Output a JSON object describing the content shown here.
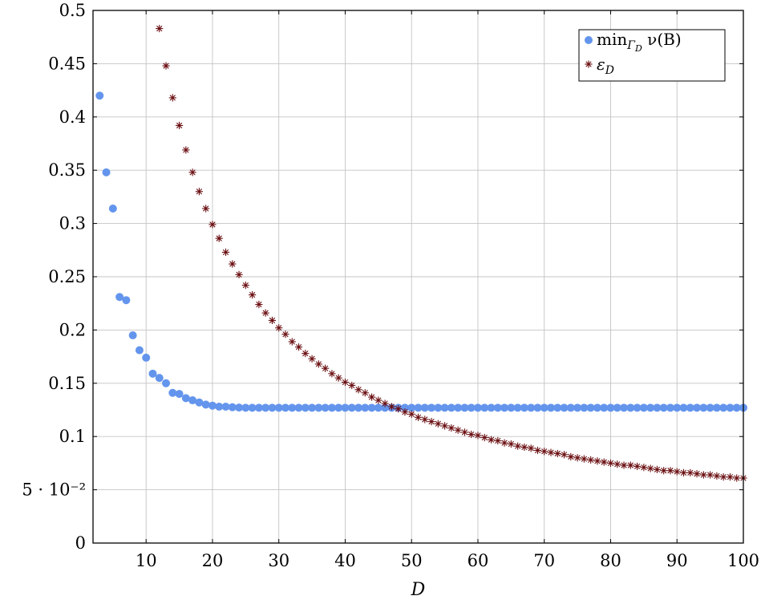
{
  "chart_data": {
    "type": "scatter",
    "xlabel": "D",
    "ylabel": "",
    "xlim": [
      2,
      100
    ],
    "ylim": [
      0,
      0.5
    ],
    "grid": true,
    "legend_position": "top-right",
    "x_ticks": [
      10,
      20,
      30,
      40,
      50,
      60,
      70,
      80,
      90,
      100
    ],
    "x_tick_labels": [
      "10",
      "20",
      "30",
      "40",
      "50",
      "60",
      "70",
      "80",
      "90",
      "100"
    ],
    "y_ticks": [
      0,
      0.05,
      0.1,
      0.15,
      0.2,
      0.25,
      0.3,
      0.35,
      0.4,
      0.45,
      0.5
    ],
    "y_tick_labels": [
      "0",
      "5 · 10⁻²",
      "0.1",
      "0.15",
      "0.2",
      "0.25",
      "0.3",
      "0.35",
      "0.4",
      "0.45",
      "0.5"
    ],
    "series": [
      {
        "name": "min_{Γ_D} ν(B)",
        "color": "#6495ed",
        "marker": "circle",
        "x": [
          3,
          4,
          5,
          6,
          7,
          8,
          9,
          10,
          11,
          12,
          13,
          14,
          15,
          16,
          17,
          18,
          19,
          20,
          21,
          22,
          23,
          24,
          25,
          26,
          27,
          28,
          29,
          30,
          31,
          32,
          33,
          34,
          35,
          36,
          37,
          38,
          39,
          40,
          41,
          42,
          43,
          44,
          45,
          46,
          47,
          48,
          49,
          50,
          51,
          52,
          53,
          54,
          55,
          56,
          57,
          58,
          59,
          60,
          61,
          62,
          63,
          64,
          65,
          66,
          67,
          68,
          69,
          70,
          71,
          72,
          73,
          74,
          75,
          76,
          77,
          78,
          79,
          80,
          81,
          82,
          83,
          84,
          85,
          86,
          87,
          88,
          89,
          90,
          91,
          92,
          93,
          94,
          95,
          96,
          97,
          98,
          99,
          100
        ],
        "y": [
          0.42,
          0.348,
          0.314,
          0.231,
          0.228,
          0.195,
          0.181,
          0.174,
          0.159,
          0.155,
          0.15,
          0.141,
          0.14,
          0.136,
          0.134,
          0.132,
          0.13,
          0.129,
          0.128,
          0.128,
          0.1275,
          0.1272,
          0.127,
          0.127,
          0.127,
          0.127,
          0.127,
          0.127,
          0.127,
          0.127,
          0.127,
          0.127,
          0.127,
          0.127,
          0.127,
          0.127,
          0.127,
          0.127,
          0.127,
          0.127,
          0.127,
          0.127,
          0.127,
          0.127,
          0.127,
          0.127,
          0.127,
          0.127,
          0.127,
          0.127,
          0.127,
          0.127,
          0.127,
          0.127,
          0.127,
          0.127,
          0.127,
          0.127,
          0.127,
          0.127,
          0.127,
          0.127,
          0.127,
          0.127,
          0.127,
          0.127,
          0.127,
          0.127,
          0.127,
          0.127,
          0.127,
          0.127,
          0.127,
          0.127,
          0.127,
          0.127,
          0.127,
          0.127,
          0.127,
          0.127,
          0.127,
          0.127,
          0.127,
          0.127,
          0.127,
          0.127,
          0.127,
          0.127,
          0.127,
          0.127,
          0.127,
          0.127,
          0.127,
          0.127,
          0.127,
          0.127,
          0.127,
          0.127
        ]
      },
      {
        "name": "ε_D",
        "color": "#6b0f12",
        "marker": "asterisk",
        "x": [
          12,
          13,
          14,
          15,
          16,
          17,
          18,
          19,
          20,
          21,
          22,
          23,
          24,
          25,
          26,
          27,
          28,
          29,
          30,
          31,
          32,
          33,
          34,
          35,
          36,
          37,
          38,
          39,
          40,
          41,
          42,
          43,
          44,
          45,
          46,
          47,
          48,
          49,
          50,
          51,
          52,
          53,
          54,
          55,
          56,
          57,
          58,
          59,
          60,
          61,
          62,
          63,
          64,
          65,
          66,
          67,
          68,
          69,
          70,
          71,
          72,
          73,
          74,
          75,
          76,
          77,
          78,
          79,
          80,
          81,
          82,
          83,
          84,
          85,
          86,
          87,
          88,
          89,
          90,
          91,
          92,
          93,
          94,
          95,
          96,
          97,
          98,
          99,
          100
        ],
        "y": [
          0.483,
          0.448,
          0.418,
          0.392,
          0.369,
          0.348,
          0.33,
          0.314,
          0.299,
          0.286,
          0.273,
          0.262,
          0.252,
          0.242,
          0.233,
          0.224,
          0.216,
          0.209,
          0.202,
          0.196,
          0.189,
          0.184,
          0.178,
          0.173,
          0.168,
          0.164,
          0.159,
          0.155,
          0.151,
          0.148,
          0.144,
          0.141,
          0.137,
          0.134,
          0.131,
          0.128,
          0.126,
          0.123,
          0.121,
          0.118,
          0.116,
          0.114,
          0.112,
          0.11,
          0.108,
          0.106,
          0.104,
          0.102,
          0.101,
          0.099,
          0.097,
          0.096,
          0.094,
          0.093,
          0.091,
          0.09,
          0.089,
          0.087,
          0.086,
          0.085,
          0.084,
          0.083,
          0.081,
          0.08,
          0.079,
          0.078,
          0.077,
          0.076,
          0.075,
          0.074,
          0.073,
          0.073,
          0.072,
          0.071,
          0.07,
          0.069,
          0.068,
          0.068,
          0.067,
          0.066,
          0.066,
          0.065,
          0.064,
          0.064,
          0.063,
          0.062,
          0.062,
          0.061,
          0.061
        ]
      }
    ],
    "legend": {
      "entry1_main": "min",
      "entry1_sub": "Γ",
      "entry1_subsub": "D",
      "entry1_rest": " ν(B)",
      "entry2_main": "ε",
      "entry2_sub": "D"
    }
  }
}
